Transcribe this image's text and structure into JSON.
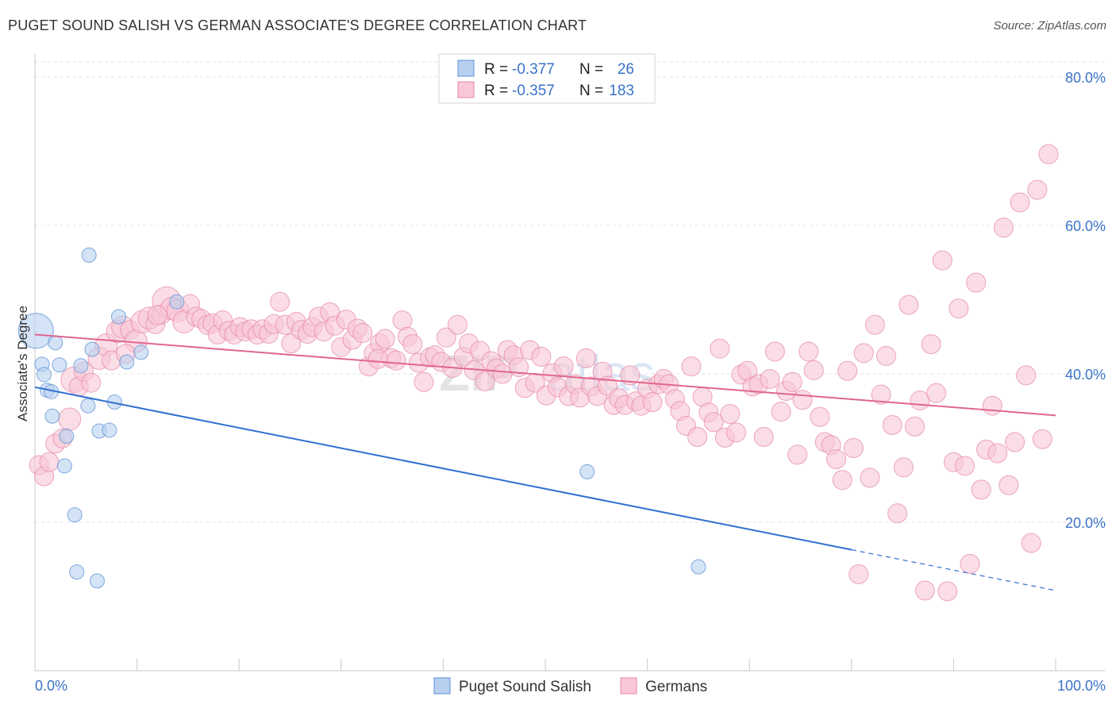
{
  "header": {
    "title": "PUGET SOUND SALISH VS GERMAN ASSOCIATE'S DEGREE CORRELATION CHART",
    "source": "Source: ZipAtlas.com"
  },
  "legend": {
    "r_label": "R =",
    "n_label": "N =",
    "series": [
      {
        "r": "-0.377",
        "n": "26",
        "color": "#5b8fd6",
        "fill": "#b8d0f0"
      },
      {
        "r": "-0.357",
        "n": "183",
        "color": "#e68aa8",
        "fill": "#f9c7d6"
      }
    ]
  },
  "bottom_legend": [
    {
      "label": "Puget Sound Salish"
    },
    {
      "label": "Germans"
    }
  ],
  "watermark": {
    "zip": "ZIP",
    "atlas": "atlas"
  },
  "chart_data": {
    "type": "scatter",
    "title": "PUGET SOUND SALISH VS GERMAN ASSOCIATE'S DEGREE CORRELATION CHART",
    "xlabel": "",
    "ylabel": "Associate's Degree",
    "xlim": [
      0,
      100
    ],
    "ylim": [
      0,
      85
    ],
    "x_tick_labels": [
      "0.0%",
      "100.0%"
    ],
    "y_ticks": [
      20,
      40,
      60,
      80
    ],
    "y_tick_labels": [
      "20.0%",
      "40.0%",
      "60.0%",
      "80.0%"
    ],
    "grid": true,
    "legend_position": "top-center",
    "series": [
      {
        "name": "Puget Sound Salish",
        "color": "#5b8fd6",
        "fill": "#b8d0f0",
        "trend": {
          "x0": 0,
          "y0": 38.2,
          "x1": 80,
          "y1": 16.3,
          "dash_to_x": 100,
          "dash_to_y": 10.8
        },
        "points": [
          [
            0.1,
            45.8,
            22
          ],
          [
            0.7,
            41.3,
            9
          ],
          [
            0.9,
            39.9,
            9
          ],
          [
            1.2,
            37.8,
            9
          ],
          [
            1.7,
            34.3,
            9
          ],
          [
            2.0,
            44.2,
            9
          ],
          [
            2.4,
            41.2,
            9
          ],
          [
            2.9,
            27.6,
            9
          ],
          [
            3.1,
            31.6,
            9
          ],
          [
            3.9,
            21.0,
            9
          ],
          [
            4.1,
            13.3,
            9
          ],
          [
            4.5,
            41.1,
            9
          ],
          [
            5.2,
            35.7,
            9
          ],
          [
            5.3,
            56.0,
            9
          ],
          [
            5.6,
            43.3,
            9
          ],
          [
            6.1,
            12.1,
            9
          ],
          [
            6.3,
            32.3,
            9
          ],
          [
            7.3,
            32.4,
            9
          ],
          [
            7.8,
            36.2,
            9
          ],
          [
            8.2,
            47.7,
            9
          ],
          [
            9.0,
            41.6,
            9
          ],
          [
            10.4,
            42.9,
            9
          ],
          [
            13.9,
            49.7,
            9
          ],
          [
            1.6,
            37.6,
            9
          ],
          [
            54.1,
            26.8,
            9
          ],
          [
            65.0,
            14.0,
            9
          ]
        ]
      },
      {
        "name": "Germans",
        "color": "#e68aa8",
        "fill": "#f9c7d6",
        "trend": {
          "x0": 0,
          "y0": 45.3,
          "x1": 100,
          "y1": 34.4
        },
        "points": [
          [
            0.4,
            27.7,
            12
          ],
          [
            0.9,
            26.2,
            12
          ],
          [
            1.4,
            28.1,
            12
          ],
          [
            2.0,
            30.6,
            12
          ],
          [
            2.7,
            31.3,
            12
          ],
          [
            3.4,
            33.9,
            14
          ],
          [
            3.8,
            39.2,
            16
          ],
          [
            4.3,
            38.3,
            12
          ],
          [
            4.8,
            40.3,
            12
          ],
          [
            5.5,
            38.8,
            12
          ],
          [
            6.3,
            42.1,
            14
          ],
          [
            7.0,
            43.9,
            14
          ],
          [
            7.5,
            41.8,
            12
          ],
          [
            8.1,
            45.7,
            14
          ],
          [
            8.6,
            46.3,
            14
          ],
          [
            9.3,
            45.9,
            12
          ],
          [
            9.9,
            44.4,
            14
          ],
          [
            10.5,
            47.0,
            14
          ],
          [
            11.2,
            47.5,
            14
          ],
          [
            11.8,
            46.7,
            12
          ],
          [
            12.4,
            48.0,
            12
          ],
          [
            12.9,
            49.8,
            18
          ],
          [
            13.4,
            48.8,
            14
          ],
          [
            14.0,
            48.5,
            14
          ],
          [
            14.6,
            47.0,
            14
          ],
          [
            15.2,
            49.4,
            12
          ],
          [
            15.8,
            47.7,
            12
          ],
          [
            16.3,
            47.4,
            12
          ],
          [
            16.9,
            46.6,
            12
          ],
          [
            17.4,
            46.8,
            12
          ],
          [
            17.9,
            45.3,
            12
          ],
          [
            18.4,
            47.2,
            12
          ],
          [
            19.0,
            45.8,
            12
          ],
          [
            19.5,
            45.3,
            12
          ],
          [
            20.1,
            46.3,
            12
          ],
          [
            20.6,
            45.7,
            12
          ],
          [
            21.2,
            46.0,
            12
          ],
          [
            21.8,
            45.3,
            12
          ],
          [
            22.3,
            46.0,
            12
          ],
          [
            22.9,
            45.4,
            12
          ],
          [
            23.4,
            46.7,
            12
          ],
          [
            24.0,
            49.7,
            12
          ],
          [
            24.5,
            46.6,
            12
          ],
          [
            25.1,
            44.1,
            12
          ],
          [
            25.6,
            47.0,
            12
          ],
          [
            26.1,
            45.9,
            12
          ],
          [
            26.7,
            45.4,
            12
          ],
          [
            27.2,
            46.3,
            12
          ],
          [
            27.8,
            47.7,
            12
          ],
          [
            28.3,
            45.7,
            12
          ],
          [
            28.9,
            48.3,
            12
          ],
          [
            29.4,
            46.5,
            12
          ],
          [
            30.0,
            43.6,
            12
          ],
          [
            30.5,
            47.3,
            12
          ],
          [
            31.1,
            44.6,
            12
          ],
          [
            31.6,
            46.1,
            12
          ],
          [
            32.1,
            45.5,
            12
          ],
          [
            32.7,
            41.0,
            12
          ],
          [
            33.2,
            42.8,
            12
          ],
          [
            33.8,
            44.1,
            12
          ],
          [
            34.3,
            44.7,
            12
          ],
          [
            34.9,
            42.1,
            12
          ],
          [
            35.4,
            41.8,
            12
          ],
          [
            36.0,
            47.2,
            12
          ],
          [
            36.5,
            45.0,
            12
          ],
          [
            37.0,
            44.0,
            12
          ],
          [
            37.6,
            41.5,
            12
          ],
          [
            38.1,
            38.9,
            12
          ],
          [
            38.7,
            42.2,
            12
          ],
          [
            39.2,
            42.5,
            12
          ],
          [
            39.8,
            41.6,
            12
          ],
          [
            40.3,
            44.9,
            12
          ],
          [
            40.9,
            40.8,
            12
          ],
          [
            41.4,
            46.6,
            12
          ],
          [
            42.0,
            42.3,
            12
          ],
          [
            42.5,
            44.1,
            12
          ],
          [
            43.0,
            40.5,
            12
          ],
          [
            43.6,
            43.1,
            12
          ],
          [
            44.1,
            39.0,
            12
          ],
          [
            44.7,
            41.7,
            12
          ],
          [
            45.2,
            40.7,
            12
          ],
          [
            45.8,
            40.0,
            12
          ],
          [
            46.3,
            43.2,
            12
          ],
          [
            46.9,
            42.5,
            12
          ],
          [
            47.4,
            40.9,
            12
          ],
          [
            48.0,
            38.1,
            12
          ],
          [
            48.5,
            43.2,
            12
          ],
          [
            49.0,
            38.8,
            12
          ],
          [
            49.6,
            42.3,
            12
          ],
          [
            50.1,
            37.1,
            12
          ],
          [
            50.7,
            40.1,
            12
          ],
          [
            51.2,
            38.2,
            12
          ],
          [
            51.8,
            41.0,
            12
          ],
          [
            52.3,
            37.0,
            12
          ],
          [
            52.9,
            38.6,
            12
          ],
          [
            53.4,
            36.8,
            12
          ],
          [
            54.0,
            42.1,
            12
          ],
          [
            54.5,
            38.3,
            12
          ],
          [
            55.1,
            37.0,
            12
          ],
          [
            55.6,
            40.3,
            12
          ],
          [
            56.1,
            38.4,
            12
          ],
          [
            56.7,
            35.8,
            12
          ],
          [
            57.2,
            36.7,
            12
          ],
          [
            57.8,
            35.8,
            12
          ],
          [
            58.3,
            39.8,
            12
          ],
          [
            58.9,
            36.3,
            12
          ],
          [
            59.4,
            35.7,
            12
          ],
          [
            60.0,
            38.0,
            12
          ],
          [
            60.5,
            36.2,
            12
          ],
          [
            61.1,
            38.6,
            12
          ],
          [
            61.6,
            39.3,
            12
          ],
          [
            62.1,
            38.6,
            12
          ],
          [
            62.7,
            36.6,
            12
          ],
          [
            63.2,
            35.0,
            12
          ],
          [
            63.8,
            33.0,
            12
          ],
          [
            64.3,
            41.0,
            12
          ],
          [
            64.9,
            31.5,
            12
          ],
          [
            65.4,
            36.9,
            12
          ],
          [
            66.0,
            34.8,
            12
          ],
          [
            66.5,
            33.5,
            12
          ],
          [
            67.1,
            43.4,
            12
          ],
          [
            67.6,
            31.4,
            12
          ],
          [
            68.1,
            34.6,
            12
          ],
          [
            68.7,
            32.1,
            12
          ],
          [
            69.2,
            39.9,
            12
          ],
          [
            69.8,
            40.4,
            12
          ],
          [
            70.3,
            38.3,
            12
          ],
          [
            70.9,
            38.6,
            12
          ],
          [
            71.4,
            31.5,
            12
          ],
          [
            72.0,
            39.3,
            12
          ],
          [
            72.5,
            43.0,
            12
          ],
          [
            73.1,
            34.9,
            12
          ],
          [
            73.6,
            37.7,
            12
          ],
          [
            74.2,
            38.9,
            12
          ],
          [
            74.7,
            29.1,
            12
          ],
          [
            75.2,
            36.5,
            12
          ],
          [
            75.8,
            43.0,
            12
          ],
          [
            76.3,
            40.5,
            12
          ],
          [
            76.9,
            34.2,
            12
          ],
          [
            77.4,
            30.8,
            12
          ],
          [
            78.0,
            30.4,
            12
          ],
          [
            78.5,
            28.5,
            12
          ],
          [
            79.1,
            25.7,
            12
          ],
          [
            79.6,
            40.4,
            12
          ],
          [
            80.2,
            30.0,
            12
          ],
          [
            80.7,
            13.0,
            12
          ],
          [
            81.2,
            42.8,
            12
          ],
          [
            81.8,
            26.0,
            12
          ],
          [
            82.3,
            46.6,
            12
          ],
          [
            82.9,
            37.2,
            12
          ],
          [
            83.4,
            42.4,
            12
          ],
          [
            84.0,
            33.1,
            12
          ],
          [
            84.5,
            21.2,
            12
          ],
          [
            85.1,
            27.4,
            12
          ],
          [
            85.6,
            49.3,
            12
          ],
          [
            86.2,
            32.9,
            12
          ],
          [
            86.7,
            36.4,
            12
          ],
          [
            87.2,
            10.8,
            12
          ],
          [
            87.8,
            44.0,
            12
          ],
          [
            88.3,
            37.4,
            12
          ],
          [
            88.9,
            55.3,
            12
          ],
          [
            89.4,
            10.7,
            12
          ],
          [
            90.0,
            28.1,
            12
          ],
          [
            90.5,
            48.8,
            12
          ],
          [
            91.1,
            27.6,
            12
          ],
          [
            91.6,
            14.4,
            12
          ],
          [
            92.2,
            52.3,
            12
          ],
          [
            92.7,
            24.4,
            12
          ],
          [
            93.2,
            29.8,
            12
          ],
          [
            93.8,
            35.7,
            12
          ],
          [
            94.3,
            29.3,
            12
          ],
          [
            94.9,
            59.7,
            12
          ],
          [
            95.4,
            25.0,
            12
          ],
          [
            96.0,
            30.8,
            12
          ],
          [
            96.5,
            63.1,
            12
          ],
          [
            97.1,
            39.8,
            12
          ],
          [
            97.6,
            17.2,
            12
          ],
          [
            98.2,
            64.8,
            12
          ],
          [
            98.7,
            31.2,
            12
          ],
          [
            99.3,
            69.6,
            12
          ],
          [
            8.9,
            42.7,
            12
          ],
          [
            12.0,
            47.9,
            12
          ],
          [
            33.6,
            42.0,
            12
          ]
        ]
      }
    ]
  }
}
